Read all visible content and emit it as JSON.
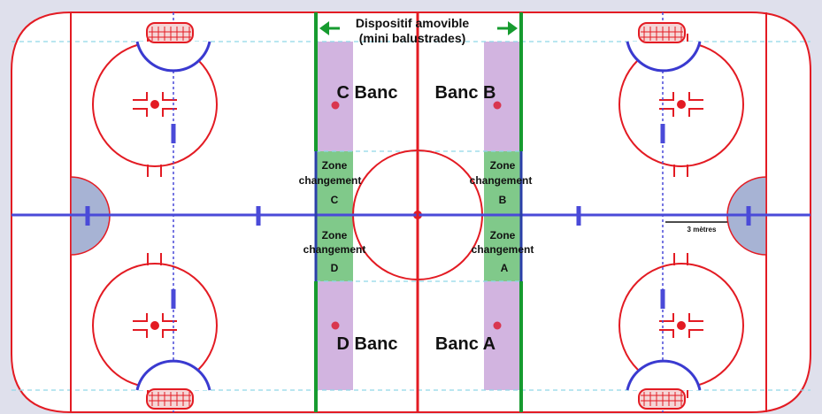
{
  "header": {
    "line1": "Dispositif amovible",
    "line2": "(mini balustrades)"
  },
  "benches": {
    "c": "C Banc",
    "b": "Banc B",
    "d": "D Banc",
    "a": "Banc A"
  },
  "zones": {
    "word_zone": "Zone",
    "word_change": "changement",
    "c": "C",
    "b": "B",
    "d": "D",
    "a": "A"
  },
  "measure": {
    "label": "3 mètres"
  },
  "colors": {
    "red": "#e31b23",
    "blue": "#4a4ad8",
    "green": "#169b2f",
    "bench_purple": "#d2b4e0",
    "change_green": "#80c98a",
    "crease": "#a7b3d4",
    "ice": "#ffffff",
    "background": "#dfe0ec"
  }
}
